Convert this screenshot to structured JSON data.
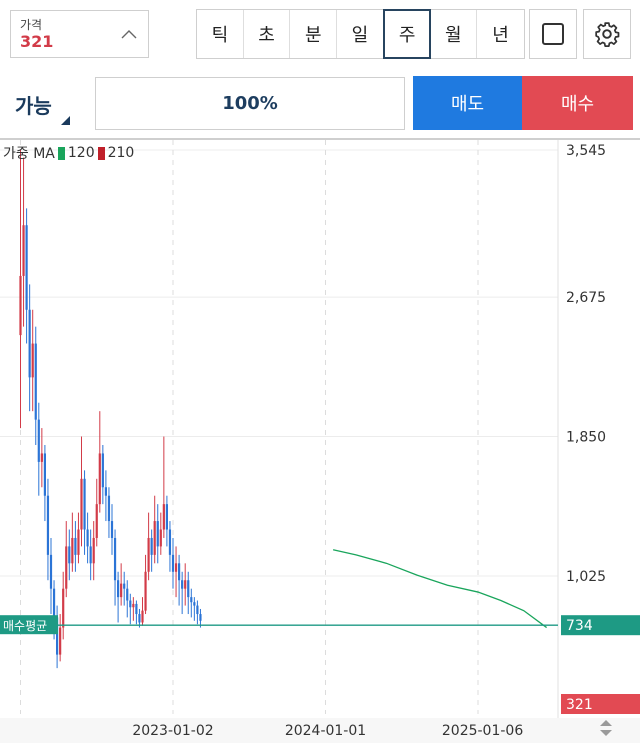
{
  "price": {
    "label": "가격",
    "value": "321"
  },
  "periods": [
    {
      "label": "틱",
      "active": false
    },
    {
      "label": "초",
      "active": false
    },
    {
      "label": "분",
      "active": false
    },
    {
      "label": "일",
      "active": false
    },
    {
      "label": "주",
      "active": true
    },
    {
      "label": "월",
      "active": false
    },
    {
      "label": "년",
      "active": false
    }
  ],
  "available": {
    "label": "가능"
  },
  "percent": "100%",
  "actions": {
    "sell_label": "매도",
    "buy_label": "매수"
  },
  "legend": {
    "prefix": "가중 MA",
    "ma1": "120",
    "ma2": "210"
  },
  "colors": {
    "up": "#d23b48",
    "down": "#2b74d6",
    "ma120": "#1aa55c",
    "ma210": "#c0202a",
    "avg_line": "#1e9a84",
    "current_tag": "#e24a53",
    "accent": "#1f7ae0"
  },
  "chart_data": {
    "type": "candlestick",
    "y_ticks": [
      "3,545",
      "2,675",
      "1,850",
      "1,025"
    ],
    "y_tick_values": [
      3545,
      2675,
      1850,
      1025
    ],
    "x_ticks": [
      "2023-01-02",
      "2024-01-01",
      "2025-01-06"
    ],
    "y_range": [
      315,
      3545
    ],
    "avg_buy": {
      "label": "매수평균",
      "value": "734"
    },
    "current": {
      "value": "321"
    },
    "ma120": [
      [
        2024.05,
        1180
      ],
      [
        2024.2,
        1150
      ],
      [
        2024.4,
        1100
      ],
      [
        2024.6,
        1030
      ],
      [
        2024.8,
        970
      ],
      [
        2025.0,
        930
      ],
      [
        2025.15,
        880
      ],
      [
        2025.3,
        820
      ],
      [
        2025.45,
        720
      ]
    ],
    "candles": [
      [
        2022.0,
        2450,
        2800,
        1900,
        3545
      ],
      [
        2022.02,
        2800,
        3100,
        2500,
        3500
      ],
      [
        2022.04,
        3100,
        2600,
        2400,
        3200
      ],
      [
        2022.06,
        2600,
        2200,
        2000,
        2750
      ],
      [
        2022.08,
        2200,
        2400,
        2000,
        2600
      ],
      [
        2022.1,
        2400,
        1950,
        1800,
        2500
      ],
      [
        2022.12,
        1950,
        1700,
        1500,
        2050
      ],
      [
        2022.14,
        1700,
        1750,
        1550,
        1900
      ],
      [
        2022.16,
        1750,
        1500,
        1350,
        1800
      ],
      [
        2022.18,
        1500,
        1150,
        1000,
        1600
      ],
      [
        2022.2,
        1150,
        950,
        800,
        1250
      ],
      [
        2022.22,
        950,
        780,
        650,
        1000
      ],
      [
        2022.24,
        780,
        560,
        480,
        850
      ],
      [
        2022.26,
        560,
        720,
        520,
        800
      ],
      [
        2022.28,
        720,
        950,
        650,
        1050
      ],
      [
        2022.3,
        950,
        1200,
        900,
        1350
      ],
      [
        2022.32,
        1200,
        1100,
        1000,
        1300
      ],
      [
        2022.34,
        1100,
        1250,
        1050,
        1400
      ],
      [
        2022.36,
        1250,
        1150,
        1050,
        1350
      ],
      [
        2022.38,
        1150,
        1300,
        1100,
        1400
      ],
      [
        2022.4,
        1300,
        1600,
        1200,
        1850
      ],
      [
        2022.42,
        1600,
        1300,
        1150,
        1650
      ],
      [
        2022.44,
        1300,
        1200,
        1100,
        1400
      ],
      [
        2022.46,
        1200,
        1100,
        1000,
        1300
      ],
      [
        2022.48,
        1100,
        1250,
        1000,
        1350
      ],
      [
        2022.5,
        1250,
        1450,
        1200,
        1600
      ],
      [
        2022.52,
        1450,
        1750,
        1400,
        2000
      ],
      [
        2022.54,
        1750,
        1550,
        1450,
        1800
      ],
      [
        2022.56,
        1550,
        1500,
        1350,
        1650
      ],
      [
        2022.58,
        1500,
        1350,
        1250,
        1550
      ],
      [
        2022.6,
        1350,
        1250,
        1150,
        1450
      ],
      [
        2022.62,
        1250,
        1000,
        850,
        1300
      ],
      [
        2022.64,
        1000,
        900,
        750,
        1050
      ],
      [
        2022.66,
        900,
        980,
        850,
        1100
      ],
      [
        2022.68,
        980,
        950,
        850,
        1050
      ],
      [
        2022.7,
        950,
        880,
        780,
        1000
      ],
      [
        2022.72,
        880,
        840,
        740,
        920
      ],
      [
        2022.74,
        840,
        860,
        760,
        900
      ],
      [
        2022.76,
        860,
        800,
        740,
        880
      ],
      [
        2022.78,
        800,
        750,
        720,
        830
      ],
      [
        2022.8,
        750,
        820,
        730,
        900
      ],
      [
        2022.82,
        820,
        1050,
        800,
        1150
      ],
      [
        2022.84,
        1050,
        1250,
        1000,
        1400
      ],
      [
        2022.86,
        1250,
        1150,
        1050,
        1300
      ],
      [
        2022.88,
        1150,
        1350,
        1100,
        1500
      ],
      [
        2022.9,
        1350,
        1200,
        1100,
        1450
      ],
      [
        2022.92,
        1200,
        1300,
        1150,
        1400
      ],
      [
        2022.94,
        1300,
        1450,
        1250,
        1850
      ],
      [
        2022.96,
        1450,
        1300,
        1200,
        1500
      ],
      [
        2022.98,
        1300,
        1150,
        1050,
        1350
      ],
      [
        2023.0,
        1150,
        1050,
        950,
        1250
      ],
      [
        2023.02,
        1050,
        1100,
        900,
        1200
      ],
      [
        2023.04,
        1100,
        1000,
        850,
        1150
      ],
      [
        2023.06,
        1000,
        950,
        800,
        1050
      ],
      [
        2023.08,
        950,
        1000,
        850,
        1100
      ],
      [
        2023.1,
        1000,
        900,
        800,
        1050
      ],
      [
        2023.12,
        900,
        870,
        780,
        950
      ],
      [
        2023.14,
        870,
        850,
        760,
        900
      ],
      [
        2023.16,
        850,
        800,
        740,
        880
      ],
      [
        2023.18,
        800,
        760,
        720,
        830
      ]
    ]
  }
}
